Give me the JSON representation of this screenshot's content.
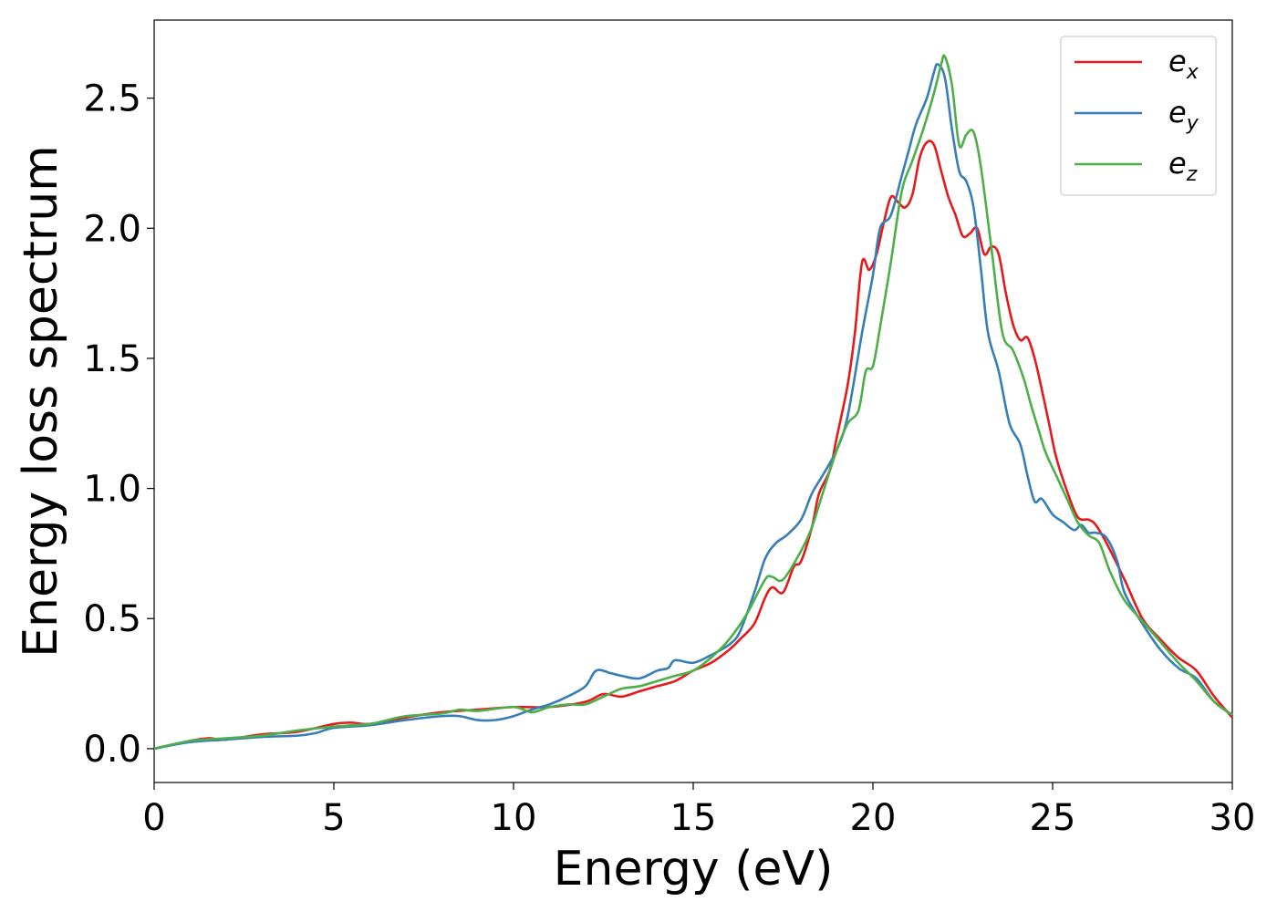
{
  "chart_data": {
    "type": "line",
    "title": "",
    "xlabel": "Energy (eV)",
    "ylabel": "Energy loss spectrum",
    "xlim": [
      0,
      30
    ],
    "ylim": [
      -0.13,
      2.8
    ],
    "xticks": [
      "0",
      "5",
      "10",
      "15",
      "20",
      "25",
      "30"
    ],
    "yticks": [
      "0.0",
      "0.5",
      "1.0",
      "1.5",
      "2.0",
      "2.5"
    ],
    "grid": false,
    "legend_position": "top-right",
    "series": [
      {
        "name": "e_x",
        "label_main": "e",
        "label_sub": "x",
        "color": "#e41a1c",
        "points": [
          [
            0,
            0.0
          ],
          [
            1,
            0.03
          ],
          [
            1.5,
            0.04
          ],
          [
            2,
            0.035
          ],
          [
            3,
            0.055
          ],
          [
            4,
            0.065
          ],
          [
            5,
            0.095
          ],
          [
            5.5,
            0.1
          ],
          [
            6,
            0.095
          ],
          [
            7,
            0.12
          ],
          [
            8,
            0.14
          ],
          [
            9,
            0.15
          ],
          [
            10,
            0.16
          ],
          [
            11,
            0.16
          ],
          [
            12,
            0.18
          ],
          [
            12.5,
            0.21
          ],
          [
            13,
            0.2
          ],
          [
            13.5,
            0.22
          ],
          [
            14,
            0.24
          ],
          [
            14.5,
            0.26
          ],
          [
            15,
            0.3
          ],
          [
            15.5,
            0.33
          ],
          [
            16,
            0.38
          ],
          [
            16.3,
            0.42
          ],
          [
            16.7,
            0.48
          ],
          [
            17,
            0.58
          ],
          [
            17.2,
            0.62
          ],
          [
            17.5,
            0.6
          ],
          [
            17.8,
            0.7
          ],
          [
            18,
            0.72
          ],
          [
            18.3,
            0.85
          ],
          [
            18.5,
            0.98
          ],
          [
            18.8,
            1.07
          ],
          [
            19,
            1.2
          ],
          [
            19.3,
            1.4
          ],
          [
            19.5,
            1.6
          ],
          [
            19.7,
            1.87
          ],
          [
            19.9,
            1.84
          ],
          [
            20.1,
            1.9
          ],
          [
            20.3,
            2.02
          ],
          [
            20.5,
            2.12
          ],
          [
            20.7,
            2.1
          ],
          [
            20.9,
            2.08
          ],
          [
            21.1,
            2.13
          ],
          [
            21.3,
            2.27
          ],
          [
            21.5,
            2.33
          ],
          [
            21.7,
            2.32
          ],
          [
            21.9,
            2.22
          ],
          [
            22.1,
            2.12
          ],
          [
            22.3,
            2.05
          ],
          [
            22.5,
            1.97
          ],
          [
            22.7,
            1.98
          ],
          [
            22.9,
            2.0
          ],
          [
            23.1,
            1.9
          ],
          [
            23.3,
            1.93
          ],
          [
            23.5,
            1.9
          ],
          [
            23.7,
            1.75
          ],
          [
            23.9,
            1.63
          ],
          [
            24.1,
            1.57
          ],
          [
            24.3,
            1.58
          ],
          [
            24.5,
            1.5
          ],
          [
            24.7,
            1.38
          ],
          [
            24.9,
            1.25
          ],
          [
            25.1,
            1.12
          ],
          [
            25.4,
            0.99
          ],
          [
            25.7,
            0.89
          ],
          [
            26,
            0.88
          ],
          [
            26.2,
            0.86
          ],
          [
            26.5,
            0.79
          ],
          [
            27,
            0.65
          ],
          [
            27.5,
            0.5
          ],
          [
            28,
            0.42
          ],
          [
            28.5,
            0.35
          ],
          [
            29,
            0.3
          ],
          [
            29.5,
            0.2
          ],
          [
            30,
            0.12
          ]
        ]
      },
      {
        "name": "e_y",
        "label_main": "e",
        "label_sub": "y",
        "color": "#377eb8",
        "points": [
          [
            0,
            0.0
          ],
          [
            1,
            0.025
          ],
          [
            2,
            0.035
          ],
          [
            3,
            0.045
          ],
          [
            4,
            0.05
          ],
          [
            4.5,
            0.06
          ],
          [
            5,
            0.08
          ],
          [
            6,
            0.09
          ],
          [
            7,
            0.11
          ],
          [
            8,
            0.125
          ],
          [
            8.5,
            0.125
          ],
          [
            9,
            0.11
          ],
          [
            9.5,
            0.11
          ],
          [
            10,
            0.125
          ],
          [
            10.5,
            0.15
          ],
          [
            11,
            0.17
          ],
          [
            11.5,
            0.2
          ],
          [
            12,
            0.24
          ],
          [
            12.3,
            0.3
          ],
          [
            12.7,
            0.29
          ],
          [
            13,
            0.28
          ],
          [
            13.5,
            0.27
          ],
          [
            14,
            0.3
          ],
          [
            14.3,
            0.31
          ],
          [
            14.5,
            0.34
          ],
          [
            15,
            0.33
          ],
          [
            15.5,
            0.36
          ],
          [
            16,
            0.4
          ],
          [
            16.3,
            0.45
          ],
          [
            16.7,
            0.6
          ],
          [
            17,
            0.73
          ],
          [
            17.3,
            0.79
          ],
          [
            17.6,
            0.82
          ],
          [
            18,
            0.88
          ],
          [
            18.3,
            0.98
          ],
          [
            18.6,
            1.05
          ],
          [
            19,
            1.15
          ],
          [
            19.3,
            1.28
          ],
          [
            19.7,
            1.6
          ],
          [
            20,
            1.82
          ],
          [
            20.2,
            2.0
          ],
          [
            20.5,
            2.05
          ],
          [
            20.8,
            2.2
          ],
          [
            21,
            2.3
          ],
          [
            21.2,
            2.4
          ],
          [
            21.5,
            2.5
          ],
          [
            21.7,
            2.6
          ],
          [
            21.8,
            2.63
          ],
          [
            22,
            2.58
          ],
          [
            22.2,
            2.38
          ],
          [
            22.4,
            2.22
          ],
          [
            22.6,
            2.18
          ],
          [
            22.8,
            2.08
          ],
          [
            23,
            1.85
          ],
          [
            23.2,
            1.6
          ],
          [
            23.5,
            1.45
          ],
          [
            23.8,
            1.25
          ],
          [
            24.1,
            1.17
          ],
          [
            24.3,
            1.05
          ],
          [
            24.5,
            0.95
          ],
          [
            24.7,
            0.96
          ],
          [
            25,
            0.9
          ],
          [
            25.3,
            0.87
          ],
          [
            25.6,
            0.84
          ],
          [
            25.8,
            0.86
          ],
          [
            26,
            0.83
          ],
          [
            26.2,
            0.83
          ],
          [
            26.5,
            0.81
          ],
          [
            26.8,
            0.72
          ],
          [
            27,
            0.6
          ],
          [
            27.5,
            0.48
          ],
          [
            28,
            0.38
          ],
          [
            28.5,
            0.31
          ],
          [
            29,
            0.27
          ],
          [
            29.5,
            0.18
          ],
          [
            30,
            0.13
          ]
        ]
      },
      {
        "name": "e_z",
        "label_main": "e",
        "label_sub": "z",
        "color": "#4daf4a",
        "points": [
          [
            0,
            0.0
          ],
          [
            1,
            0.03
          ],
          [
            2,
            0.04
          ],
          [
            3,
            0.05
          ],
          [
            4,
            0.07
          ],
          [
            5,
            0.085
          ],
          [
            6,
            0.095
          ],
          [
            6.5,
            0.11
          ],
          [
            7,
            0.125
          ],
          [
            8,
            0.135
          ],
          [
            8.5,
            0.15
          ],
          [
            9,
            0.145
          ],
          [
            10,
            0.16
          ],
          [
            10.5,
            0.14
          ],
          [
            11,
            0.16
          ],
          [
            11.5,
            0.17
          ],
          [
            12,
            0.17
          ],
          [
            12.5,
            0.2
          ],
          [
            13,
            0.23
          ],
          [
            13.5,
            0.24
          ],
          [
            14,
            0.26
          ],
          [
            14.5,
            0.28
          ],
          [
            15,
            0.3
          ],
          [
            15.5,
            0.35
          ],
          [
            16,
            0.42
          ],
          [
            16.5,
            0.52
          ],
          [
            17,
            0.65
          ],
          [
            17.2,
            0.66
          ],
          [
            17.5,
            0.65
          ],
          [
            18,
            0.76
          ],
          [
            18.3,
            0.85
          ],
          [
            18.6,
            0.98
          ],
          [
            19,
            1.15
          ],
          [
            19.3,
            1.25
          ],
          [
            19.6,
            1.3
          ],
          [
            19.8,
            1.45
          ],
          [
            20,
            1.47
          ],
          [
            20.2,
            1.62
          ],
          [
            20.5,
            1.87
          ],
          [
            20.8,
            2.14
          ],
          [
            21.1,
            2.26
          ],
          [
            21.4,
            2.38
          ],
          [
            21.7,
            2.52
          ],
          [
            21.9,
            2.63
          ],
          [
            22.0,
            2.66
          ],
          [
            22.2,
            2.55
          ],
          [
            22.4,
            2.32
          ],
          [
            22.6,
            2.36
          ],
          [
            22.8,
            2.37
          ],
          [
            23,
            2.24
          ],
          [
            23.3,
            1.92
          ],
          [
            23.6,
            1.6
          ],
          [
            23.9,
            1.53
          ],
          [
            24.2,
            1.42
          ],
          [
            24.4,
            1.32
          ],
          [
            24.6,
            1.23
          ],
          [
            24.8,
            1.14
          ],
          [
            25.1,
            1.05
          ],
          [
            25.4,
            0.96
          ],
          [
            25.7,
            0.87
          ],
          [
            26,
            0.82
          ],
          [
            26.3,
            0.79
          ],
          [
            26.6,
            0.68
          ],
          [
            27,
            0.57
          ],
          [
            27.5,
            0.49
          ],
          [
            28,
            0.41
          ],
          [
            28.5,
            0.33
          ],
          [
            29,
            0.26
          ],
          [
            29.5,
            0.18
          ],
          [
            30,
            0.13
          ]
        ]
      }
    ]
  }
}
